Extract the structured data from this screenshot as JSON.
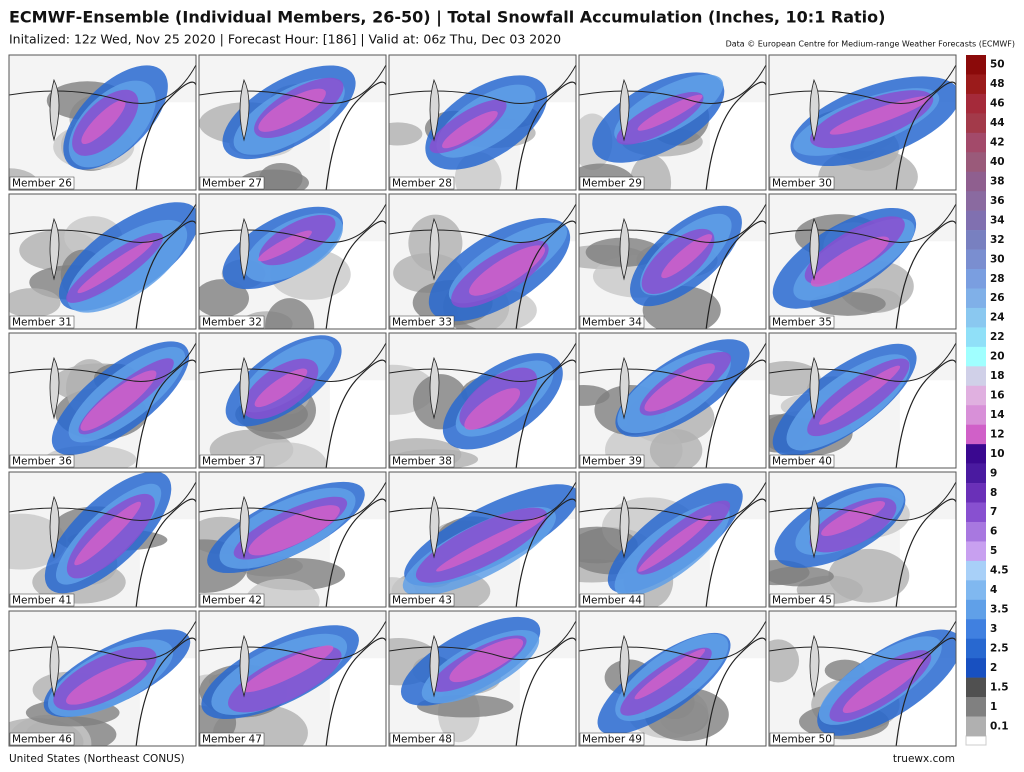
{
  "header": {
    "title": "ECMWF-Ensemble (Individual Members, 26-50) | Total Snowfall Accumulation (Inches, 10:1 Ratio)",
    "subtitle": "Initalized: 12z Wed, Nov 25 2020 | Forecast Hour: [186] | Valid at: 06z Thu, Dec 03 2020",
    "credit": "Data © European Centre for Medium-range Weather Forecasts (ECMWF)"
  },
  "panels": [
    "Member 26",
    "Member 27",
    "Member 28",
    "Member 29",
    "Member 30",
    "Member 31",
    "Member 32",
    "Member 33",
    "Member 34",
    "Member 35",
    "Member 36",
    "Member 37",
    "Member 38",
    "Member 39",
    "Member 40",
    "Member 41",
    "Member 42",
    "Member 43",
    "Member 44",
    "Member 45",
    "Member 46",
    "Member 47",
    "Member 48",
    "Member 49",
    "Member 50"
  ],
  "colorbar": [
    {
      "label": "50",
      "color": "#8b0a0a"
    },
    {
      "label": "48",
      "color": "#9b1b1b"
    },
    {
      "label": "46",
      "color": "#a52a3a"
    },
    {
      "label": "44",
      "color": "#a33a4a"
    },
    {
      "label": "42",
      "color": "#a34a6a"
    },
    {
      "label": "40",
      "color": "#9a5a7a"
    },
    {
      "label": "38",
      "color": "#8f5f8f"
    },
    {
      "label": "36",
      "color": "#8a6aa0"
    },
    {
      "label": "34",
      "color": "#8070b0"
    },
    {
      "label": "32",
      "color": "#7880c0"
    },
    {
      "label": "30",
      "color": "#7a8ed0"
    },
    {
      "label": "28",
      "color": "#7a9ee0"
    },
    {
      "label": "26",
      "color": "#80b0e8"
    },
    {
      "label": "24",
      "color": "#8ac8f0"
    },
    {
      "label": "22",
      "color": "#90e0f8"
    },
    {
      "label": "20",
      "color": "#a0ffff"
    },
    {
      "label": "18",
      "color": "#d0d0e8"
    },
    {
      "label": "16",
      "color": "#e0b0e0"
    },
    {
      "label": "14",
      "color": "#d890d8"
    },
    {
      "label": "12",
      "color": "#d060c8"
    },
    {
      "label": "10",
      "color": "#3a0890"
    },
    {
      "label": "9",
      "color": "#4a1aa0"
    },
    {
      "label": "8",
      "color": "#6a30b8"
    },
    {
      "label": "7",
      "color": "#8850d0"
    },
    {
      "label": "6",
      "color": "#a878e0"
    },
    {
      "label": "5",
      "color": "#c8a0f0"
    },
    {
      "label": "4.5",
      "color": "#a8d0f8"
    },
    {
      "label": "4",
      "color": "#80b8f0"
    },
    {
      "label": "3.5",
      "color": "#60a0e8"
    },
    {
      "label": "3",
      "color": "#4080e0"
    },
    {
      "label": "2.5",
      "color": "#2868d0"
    },
    {
      "label": "2",
      "color": "#1850c0"
    },
    {
      "label": "1.5",
      "color": "#505050"
    },
    {
      "label": "1",
      "color": "#808080"
    },
    {
      "label": "0.1",
      "color": "#b0b0b0"
    }
  ],
  "footer": {
    "region": "United States (Northeast CONUS)",
    "site": "truewx.com"
  }
}
